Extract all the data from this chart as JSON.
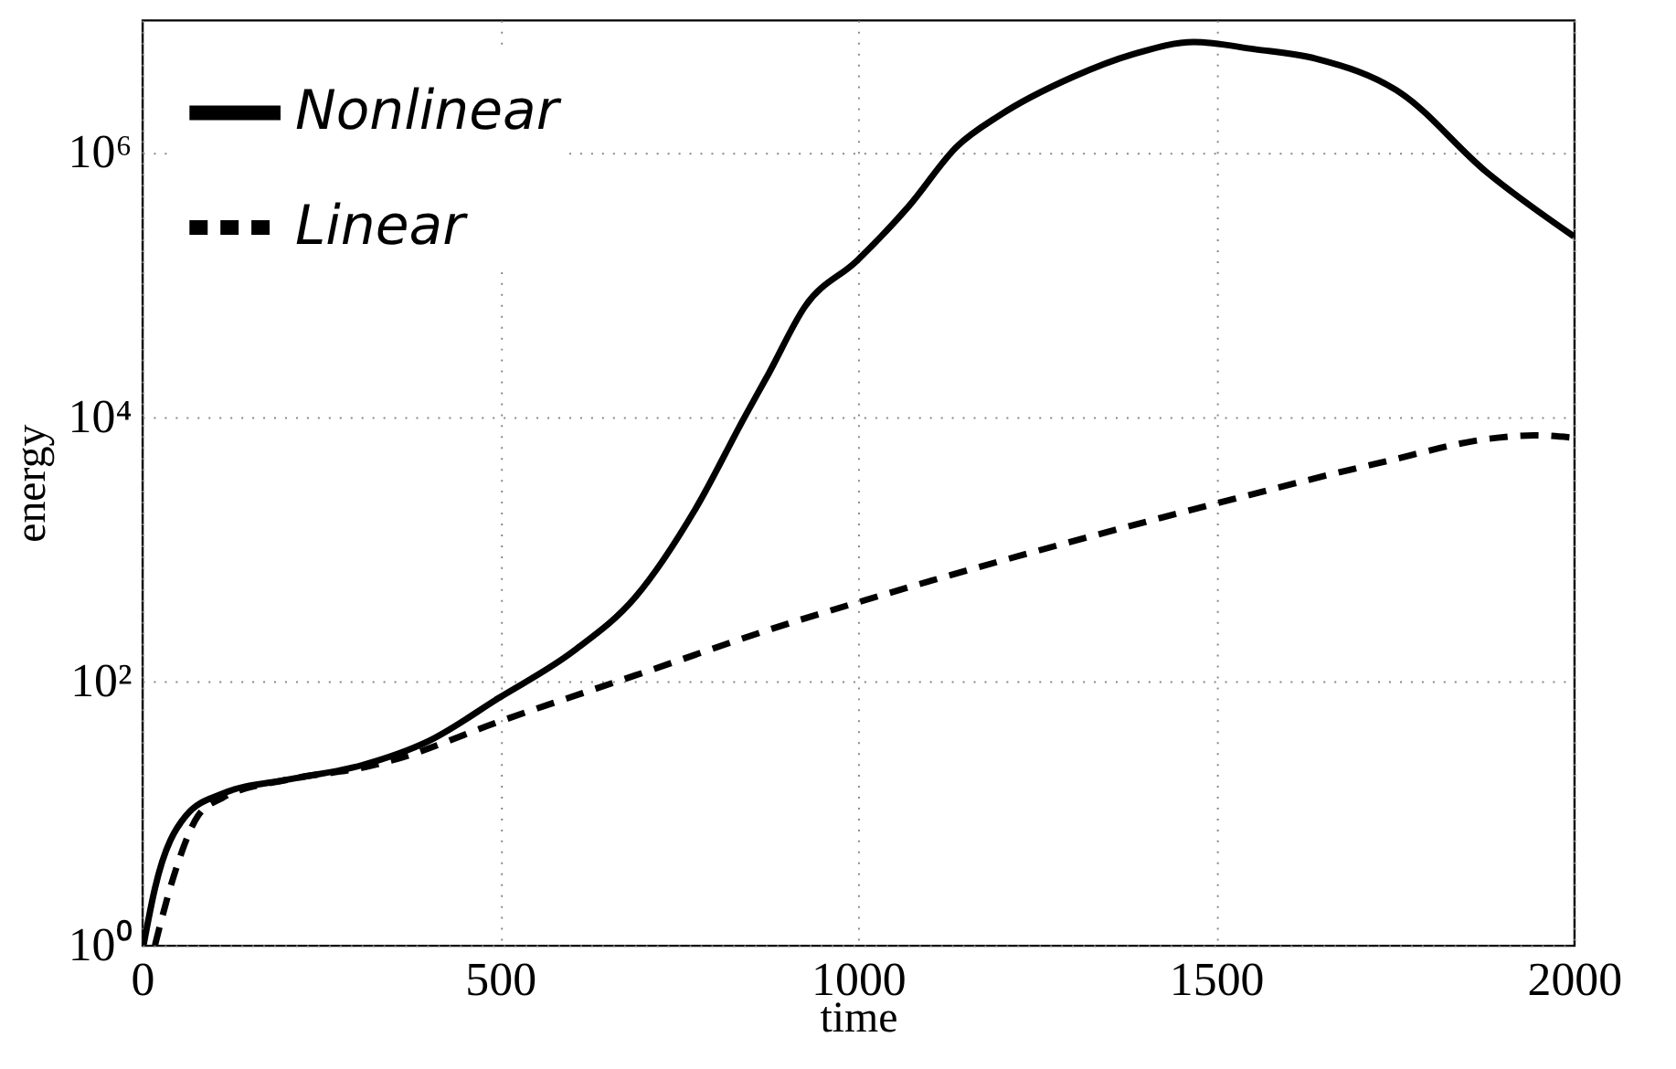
{
  "chart_data": {
    "type": "line",
    "xlabel": "time",
    "ylabel": "energy",
    "log": "y",
    "grid": true,
    "legend": "top left",
    "marker": "none",
    "xlim": [
      0,
      2000
    ],
    "xticks": [
      0,
      500,
      1000,
      1500,
      2000
    ],
    "ylim": [
      1,
      10000000
    ],
    "yticks": [
      {
        "value": 1,
        "label": "10⁰"
      },
      {
        "value": 100,
        "label": "10²"
      },
      {
        "value": 10000,
        "label": "10⁴"
      },
      {
        "value": 1000000,
        "label": "10⁶"
      }
    ],
    "series": [
      {
        "name": "Nonlinear",
        "color": "#000000",
        "line_style": "solid",
        "x": [
          2,
          18,
          61,
          112,
          206,
          307,
          400,
          498,
          604,
          689,
          773,
          842,
          875,
          926,
          998,
          1071,
          1138,
          1198,
          1300,
          1384,
          1469,
          1554,
          1639,
          1758,
          1876,
          2000
        ],
        "values": [
          1,
          2.7,
          9.5,
          14,
          18,
          23,
          35,
          74,
          170,
          430,
          2000,
          10000,
          21000,
          68000,
          150000,
          390000,
          1100000,
          1900000,
          3700000,
          5500000,
          6800000,
          6000000,
          5100000,
          2800000,
          720000,
          230000
        ]
      },
      {
        "name": "Linear",
        "color": "#000000",
        "line_style": "dashed",
        "x": [
          18,
          44,
          78,
          112,
          206,
          307,
          349,
          498,
          689,
          892,
          998,
          1501,
          1724,
          1893,
          1944,
          2000
        ],
        "values": [
          1,
          3.3,
          9.5,
          13,
          18,
          22,
          25,
          49,
          110,
          260,
          390,
          2200,
          4400,
          6900,
          7200,
          6900
        ]
      }
    ]
  }
}
